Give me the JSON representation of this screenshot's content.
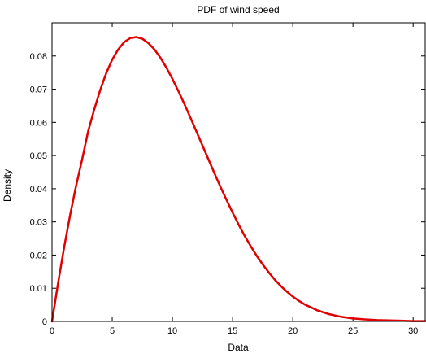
{
  "chart_data": {
    "type": "line",
    "title": "PDF of wind speed",
    "xlabel": "Data",
    "ylabel": "Density",
    "xlim": [
      0,
      31
    ],
    "ylim": [
      0,
      0.09
    ],
    "xticks": [
      0,
      5,
      10,
      15,
      20,
      25,
      30
    ],
    "yticks": [
      0,
      0.01,
      0.02,
      0.03,
      0.04,
      0.05,
      0.06,
      0.07,
      0.08
    ],
    "ytick_labels": [
      "0",
      "0.01",
      "0.02",
      "0.03",
      "0.04",
      "0.05",
      "0.06",
      "0.07",
      "0.08"
    ],
    "grid": false,
    "series": [
      {
        "color": "#e00000",
        "x": [
          0,
          0.5,
          1,
          1.5,
          2,
          2.5,
          3,
          3.5,
          4,
          4.5,
          5,
          5.5,
          6,
          6.5,
          7,
          7.5,
          8,
          8.5,
          9,
          9.5,
          10,
          10.5,
          11,
          11.5,
          12,
          12.5,
          13,
          13.5,
          14,
          14.5,
          15,
          15.5,
          16,
          16.5,
          17,
          17.5,
          18,
          18.5,
          19,
          19.5,
          20,
          20.5,
          21,
          22,
          23,
          24,
          25,
          26,
          27,
          28,
          29,
          30,
          31
        ],
        "y": [
          0,
          0.0115,
          0.0222,
          0.032,
          0.0409,
          0.0488,
          0.0573,
          0.0638,
          0.0697,
          0.0748,
          0.0789,
          0.082,
          0.0842,
          0.0854,
          0.0857,
          0.0852,
          0.0839,
          0.082,
          0.0795,
          0.0765,
          0.0731,
          0.0694,
          0.0655,
          0.0614,
          0.0572,
          0.053,
          0.0488,
          0.0446,
          0.0405,
          0.0366,
          0.0328,
          0.0292,
          0.0258,
          0.0227,
          0.0198,
          0.0172,
          0.0148,
          0.0126,
          0.0107,
          0.009,
          0.0075,
          0.0062,
          0.0051,
          0.0034,
          0.0022,
          0.0014,
          0.0009,
          0.0006,
          0.0004,
          0.0003,
          0.0002,
          0.0001,
          0.0001
        ]
      }
    ]
  }
}
